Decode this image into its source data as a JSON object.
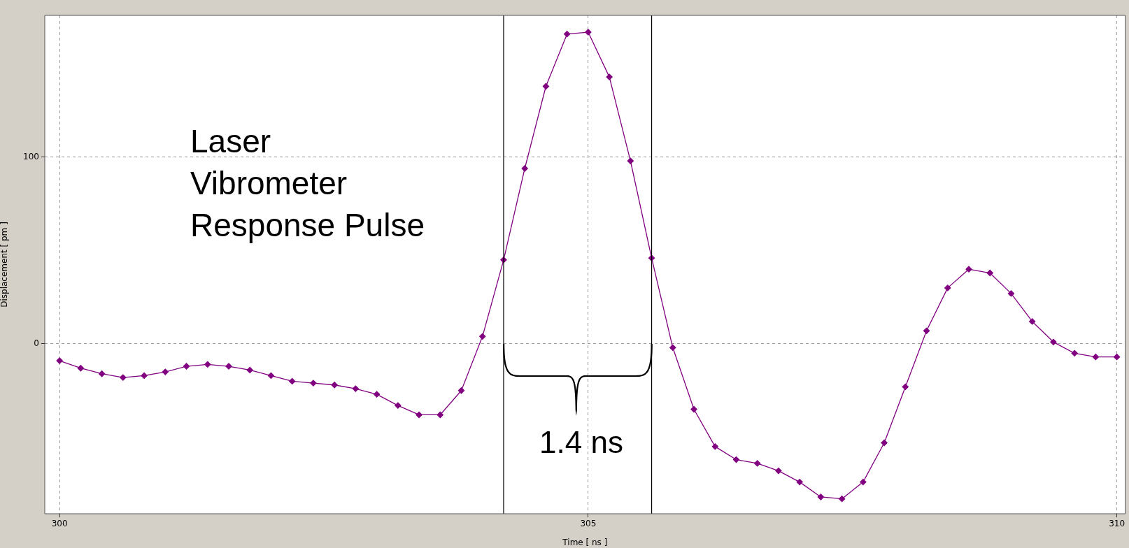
{
  "chart_data": {
    "type": "line",
    "xlabel": "Time [ ns ]",
    "ylabel": "Displacement [ pm ]",
    "x": [
      300,
      300.2,
      300.4,
      300.6,
      300.8,
      301,
      301.2,
      301.4,
      301.6,
      301.8,
      302,
      302.2,
      302.4,
      302.6,
      302.8,
      303,
      303.2,
      303.4,
      303.6,
      303.8,
      304,
      304.2,
      304.4,
      304.6,
      304.8,
      305,
      305.2,
      305.4,
      305.6,
      305.8,
      306,
      306.2,
      306.4,
      306.6,
      306.8,
      307,
      307.2,
      307.4,
      307.6,
      307.8,
      308,
      308.2,
      308.4,
      308.6,
      308.8,
      309,
      309.2,
      309.4,
      309.6,
      309.8,
      310
    ],
    "series": [
      {
        "color": "#800080",
        "values": [
          -9,
          -13,
          -16,
          -18,
          -17,
          -15,
          -12,
          -11,
          -12,
          -14,
          -17,
          -20,
          -21,
          -22,
          -24,
          -27,
          -33,
          -38,
          -38,
          -25,
          4,
          45,
          94,
          138,
          166,
          167,
          143,
          98,
          46,
          -2,
          -35,
          -55,
          -62,
          -64,
          -68,
          -74,
          -82,
          -83,
          -74,
          -53,
          -23,
          7,
          30,
          40,
          38,
          27,
          12,
          1,
          -5,
          -7,
          -7
        ]
      }
    ],
    "xlim": [
      299.86,
      310.08
    ],
    "ylim": [
      -91,
      176
    ],
    "xticks": [
      300,
      305,
      310
    ],
    "yticks": [
      0,
      100
    ],
    "grid": true,
    "marker": "diamond",
    "line_style": "solid",
    "legend": false,
    "ref_lines": [
      {
        "axis": "x",
        "value": 304.2,
        "color": "#000000"
      },
      {
        "axis": "x",
        "value": 305.6,
        "color": "#000000"
      }
    ],
    "annotations": [
      "Laser\nVibrometer\nResponse Pulse",
      "1.4 ns"
    ]
  }
}
